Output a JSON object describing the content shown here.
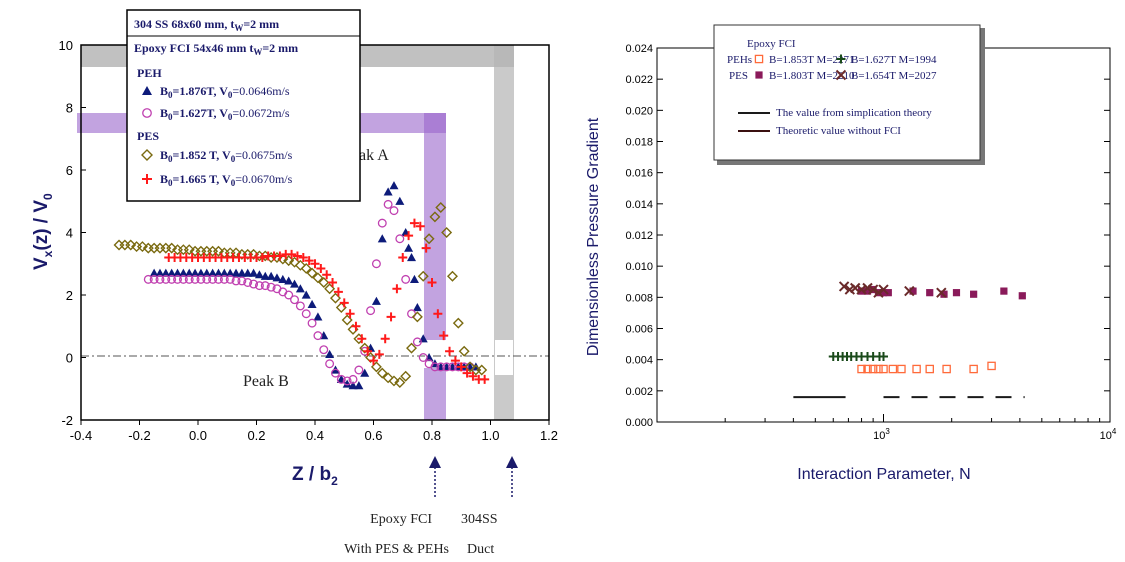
{
  "colors": {
    "peh_b1": "#0d1b7a",
    "peh_b2": "#c040b0",
    "pes_b1": "#7a6a10",
    "pes_b2": "#ff1a1a",
    "right_peh_b1": "#ff6a3a",
    "right_peh_b2": "#1a4a1a",
    "right_pes_b1": "#8a1a5a",
    "right_pes_b2": "#6a2a2a",
    "highlight_purple": "#9a66cc",
    "highlight_gray": "#a0a0a0",
    "axis_label_blue": "#1a1a6a"
  },
  "chart_data": [
    {
      "type": "scatter",
      "xlabel": "Z / b",
      "xlabel_sub": "2",
      "ylabel": "V",
      "ylabel_sub": "x",
      "ylabel_rest": "(z) / V",
      "ylabel_sub2": "0",
      "xlim": [
        -0.4,
        1.2
      ],
      "ylim": [
        -2,
        10
      ],
      "x_ticks": [
        "-0.4",
        "-0.2",
        "0.0",
        "0.2",
        "0.4",
        "0.6",
        "0.8",
        "1.0",
        "1.2"
      ],
      "y_ticks": [
        "-2",
        "0",
        "2",
        "4",
        "6",
        "8",
        "10"
      ],
      "reference_line_y": 0,
      "annotations": [
        "Peak A",
        "Peak B"
      ],
      "legend": {
        "header1": "304 SS 68x60 mm, t",
        "header1_sub": "W",
        "header1_tail": "=2 mm",
        "header2": "Epoxy FCI  54x46 mm t",
        "header2_sub": "W",
        "header2_tail": "=2 mm",
        "group1": "PEH",
        "group2": "PES"
      },
      "series": [
        {
          "group": "PEH",
          "marker": "triangle",
          "color": "peh_b1",
          "label_a": "B",
          "label_a_sub": "0",
          "label_b": "=1.876T, V",
          "label_b_sub": "0",
          "label_c": "=0.0646m/s",
          "x": [
            -0.15,
            -0.13,
            -0.11,
            -0.09,
            -0.07,
            -0.05,
            -0.03,
            -0.01,
            0.01,
            0.03,
            0.05,
            0.07,
            0.09,
            0.11,
            0.13,
            0.15,
            0.17,
            0.19,
            0.21,
            0.23,
            0.25,
            0.27,
            0.29,
            0.31,
            0.33,
            0.35,
            0.37,
            0.39,
            0.41,
            0.43,
            0.45,
            0.47,
            0.49,
            0.51,
            0.53,
            0.55,
            0.57,
            0.59,
            0.61,
            0.63,
            0.65,
            0.67,
            0.69,
            0.71,
            0.72,
            0.73,
            0.74,
            0.75,
            0.77,
            0.79,
            0.81,
            0.83,
            0.85,
            0.87,
            0.89,
            0.91,
            0.93,
            0.95
          ],
          "y": [
            2.7,
            2.7,
            2.7,
            2.7,
            2.7,
            2.7,
            2.7,
            2.7,
            2.7,
            2.7,
            2.7,
            2.7,
            2.7,
            2.7,
            2.7,
            2.7,
            2.7,
            2.7,
            2.65,
            2.6,
            2.6,
            2.55,
            2.5,
            2.45,
            2.35,
            2.2,
            2.0,
            1.7,
            1.3,
            0.7,
            0.1,
            -0.4,
            -0.7,
            -0.85,
            -0.9,
            -0.9,
            -0.5,
            0.3,
            1.8,
            3.8,
            5.3,
            5.5,
            5.0,
            4.0,
            3.5,
            3.2,
            2.5,
            1.6,
            0.6,
            0.0,
            -0.2,
            -0.3,
            -0.3,
            -0.3,
            -0.3,
            -0.3,
            -0.3,
            -0.3
          ]
        },
        {
          "group": "PEH",
          "marker": "circle",
          "color": "peh_b2",
          "label_a": "B",
          "label_a_sub": "0",
          "label_b": "=1.627T, V",
          "label_b_sub": "0",
          "label_c": "=0.0672m/s",
          "x": [
            -0.17,
            -0.15,
            -0.13,
            -0.11,
            -0.09,
            -0.07,
            -0.05,
            -0.03,
            -0.01,
            0.01,
            0.03,
            0.05,
            0.07,
            0.09,
            0.11,
            0.13,
            0.15,
            0.17,
            0.19,
            0.21,
            0.23,
            0.25,
            0.27,
            0.29,
            0.31,
            0.33,
            0.35,
            0.37,
            0.39,
            0.41,
            0.43,
            0.45,
            0.47,
            0.49,
            0.51,
            0.53,
            0.55,
            0.57,
            0.59,
            0.61,
            0.63,
            0.65,
            0.67,
            0.69,
            0.71,
            0.73,
            0.75,
            0.77,
            0.79,
            0.81,
            0.83,
            0.85,
            0.87,
            0.89,
            0.91,
            0.93
          ],
          "y": [
            2.5,
            2.5,
            2.5,
            2.5,
            2.5,
            2.5,
            2.5,
            2.5,
            2.5,
            2.5,
            2.5,
            2.5,
            2.5,
            2.5,
            2.5,
            2.45,
            2.45,
            2.4,
            2.35,
            2.3,
            2.3,
            2.25,
            2.2,
            2.1,
            2.0,
            1.85,
            1.65,
            1.4,
            1.1,
            0.7,
            0.25,
            -0.2,
            -0.5,
            -0.7,
            -0.75,
            -0.7,
            -0.4,
            0.2,
            1.5,
            3.0,
            4.3,
            4.9,
            4.7,
            3.8,
            2.5,
            1.4,
            0.5,
            0.0,
            -0.2,
            -0.3,
            -0.3,
            -0.3,
            -0.3,
            -0.3,
            -0.3,
            -0.3
          ]
        },
        {
          "group": "PES",
          "marker": "diamond",
          "color": "pes_b1",
          "label_a": "B",
          "label_a_sub": "0",
          "label_b": "=1.852 T, V",
          "label_b_sub": "0",
          "label_c": "=0.0675m/s",
          "x": [
            -0.27,
            -0.25,
            -0.23,
            -0.21,
            -0.19,
            -0.17,
            -0.15,
            -0.13,
            -0.11,
            -0.09,
            -0.07,
            -0.05,
            -0.03,
            -0.01,
            0.01,
            0.03,
            0.05,
            0.07,
            0.09,
            0.11,
            0.13,
            0.15,
            0.17,
            0.19,
            0.21,
            0.23,
            0.25,
            0.27,
            0.29,
            0.31,
            0.33,
            0.35,
            0.37,
            0.39,
            0.41,
            0.43,
            0.45,
            0.47,
            0.49,
            0.51,
            0.53,
            0.55,
            0.57,
            0.59,
            0.61,
            0.63,
            0.65,
            0.67,
            0.69,
            0.71,
            0.73,
            0.75,
            0.77,
            0.79,
            0.81,
            0.83,
            0.85,
            0.87,
            0.89,
            0.91,
            0.93,
            0.95,
            0.97
          ],
          "y": [
            3.6,
            3.6,
            3.6,
            3.55,
            3.55,
            3.5,
            3.5,
            3.5,
            3.5,
            3.5,
            3.45,
            3.45,
            3.45,
            3.4,
            3.4,
            3.4,
            3.4,
            3.4,
            3.35,
            3.35,
            3.35,
            3.3,
            3.3,
            3.3,
            3.25,
            3.25,
            3.2,
            3.2,
            3.15,
            3.1,
            3.05,
            2.95,
            2.85,
            2.7,
            2.55,
            2.4,
            2.2,
            1.9,
            1.6,
            1.2,
            0.9,
            0.6,
            0.3,
            0.0,
            -0.3,
            -0.5,
            -0.65,
            -0.75,
            -0.8,
            -0.6,
            0.3,
            1.3,
            2.6,
            3.8,
            4.5,
            4.8,
            4.0,
            2.6,
            1.1,
            0.2,
            -0.3,
            -0.4,
            -0.4
          ]
        },
        {
          "group": "PES",
          "marker": "plus",
          "color": "pes_b2",
          "label_a": "B",
          "label_a_sub": "0",
          "label_b": "=1.665 T, V",
          "label_b_sub": "0",
          "label_c": "=0.0670m/s",
          "x": [
            -0.1,
            -0.08,
            -0.06,
            -0.04,
            -0.02,
            0.0,
            0.02,
            0.04,
            0.06,
            0.08,
            0.1,
            0.12,
            0.14,
            0.16,
            0.18,
            0.2,
            0.22,
            0.24,
            0.26,
            0.28,
            0.3,
            0.32,
            0.34,
            0.36,
            0.38,
            0.4,
            0.42,
            0.44,
            0.46,
            0.48,
            0.5,
            0.52,
            0.54,
            0.56,
            0.58,
            0.6,
            0.62,
            0.64,
            0.66,
            0.68,
            0.7,
            0.72,
            0.74,
            0.76,
            0.78,
            0.8,
            0.82,
            0.84,
            0.86,
            0.88,
            0.9,
            0.92,
            0.94,
            0.96,
            0.98
          ],
          "y": [
            3.2,
            3.2,
            3.2,
            3.2,
            3.2,
            3.2,
            3.2,
            3.2,
            3.2,
            3.2,
            3.2,
            3.2,
            3.2,
            3.2,
            3.2,
            3.2,
            3.2,
            3.25,
            3.25,
            3.25,
            3.3,
            3.3,
            3.25,
            3.2,
            3.1,
            3.0,
            2.85,
            2.65,
            2.4,
            2.1,
            1.75,
            1.4,
            1.0,
            0.6,
            0.2,
            -0.1,
            0.1,
            0.6,
            1.3,
            2.2,
            3.2,
            3.9,
            4.3,
            4.2,
            3.5,
            2.4,
            1.4,
            0.7,
            0.2,
            -0.1,
            -0.3,
            -0.5,
            -0.6,
            -0.7,
            -0.7
          ]
        }
      ]
    },
    {
      "type": "scatter",
      "xlabel": "Interaction Parameter, N",
      "ylabel": "Dimensionless Pressure  Gradient",
      "x_scale": "log",
      "xlim": [
        100,
        10000
      ],
      "ylim": [
        0.0,
        0.024
      ],
      "x_tick_labels": [
        "10",
        "10"
      ],
      "x_tick_exps": [
        "3",
        "4"
      ],
      "y_ticks": [
        "0.000",
        "0.002",
        "0.004",
        "0.006",
        "0.008",
        "0.010",
        "0.012",
        "0.014",
        "0.016",
        "0.018",
        "0.020",
        "0.022",
        "0.024"
      ],
      "legend": {
        "title": "Epoxy FCI",
        "row1_prefix": "PEHs",
        "row2_prefix": "PES",
        "line1": "The value from simplication theory",
        "line2": "Theoretic value without FCI"
      },
      "series": [
        {
          "marker": "open-square",
          "color": "right_peh_b1",
          "label": "B=1.853T M=2271",
          "x": [
            800,
            850,
            900,
            950,
            1000,
            1100,
            1200,
            1400,
            1600,
            1900,
            2500,
            3000
          ],
          "y": [
            0.0034,
            0.0034,
            0.0034,
            0.0034,
            0.0034,
            0.0034,
            0.0034,
            0.0034,
            0.0034,
            0.0034,
            0.0034,
            0.0036
          ]
        },
        {
          "marker": "plus",
          "color": "right_peh_b2",
          "label": "B=1.627T M=1994",
          "x": [
            600,
            630,
            660,
            690,
            720,
            760,
            800,
            850,
            900,
            960,
            1000
          ],
          "y": [
            0.0042,
            0.0042,
            0.0042,
            0.0042,
            0.0042,
            0.0042,
            0.0042,
            0.0042,
            0.0042,
            0.0042,
            0.0042
          ]
        },
        {
          "marker": "filled-square",
          "color": "right_pes_b1",
          "label": "B=1.803T M=2210",
          "x": [
            800,
            850,
            900,
            950,
            1000,
            1050,
            1350,
            1600,
            1850,
            2100,
            2500,
            3400,
            4100
          ],
          "y": [
            0.0084,
            0.0084,
            0.0085,
            0.0083,
            0.0083,
            0.0083,
            0.0084,
            0.0083,
            0.0082,
            0.0083,
            0.0082,
            0.0084,
            0.0081
          ]
        },
        {
          "marker": "x",
          "color": "right_pes_b2",
          "label": "B=1.654T M=2027",
          "x": [
            670,
            710,
            750,
            800,
            850,
            900,
            950,
            1000,
            1300,
            1800
          ],
          "y": [
            0.0087,
            0.0085,
            0.0086,
            0.0085,
            0.0086,
            0.0085,
            0.0083,
            0.0085,
            0.0084,
            0.0083
          ]
        }
      ],
      "lines": [
        {
          "style": "solid",
          "label": "The value from simplication theory",
          "x": [
            400,
            680
          ],
          "y": [
            0.0016,
            0.0016
          ]
        },
        {
          "style": "dashed",
          "label": "Theoretic value without FCI",
          "x": [
            1000,
            4200
          ],
          "y": [
            0.0016,
            0.0016
          ]
        }
      ]
    }
  ],
  "annotations_below": {
    "col1_top": "Epoxy FCI",
    "col2_top": "304SS",
    "col1_bottom": "With PES & PEHs",
    "col2_bottom": "Duct"
  }
}
